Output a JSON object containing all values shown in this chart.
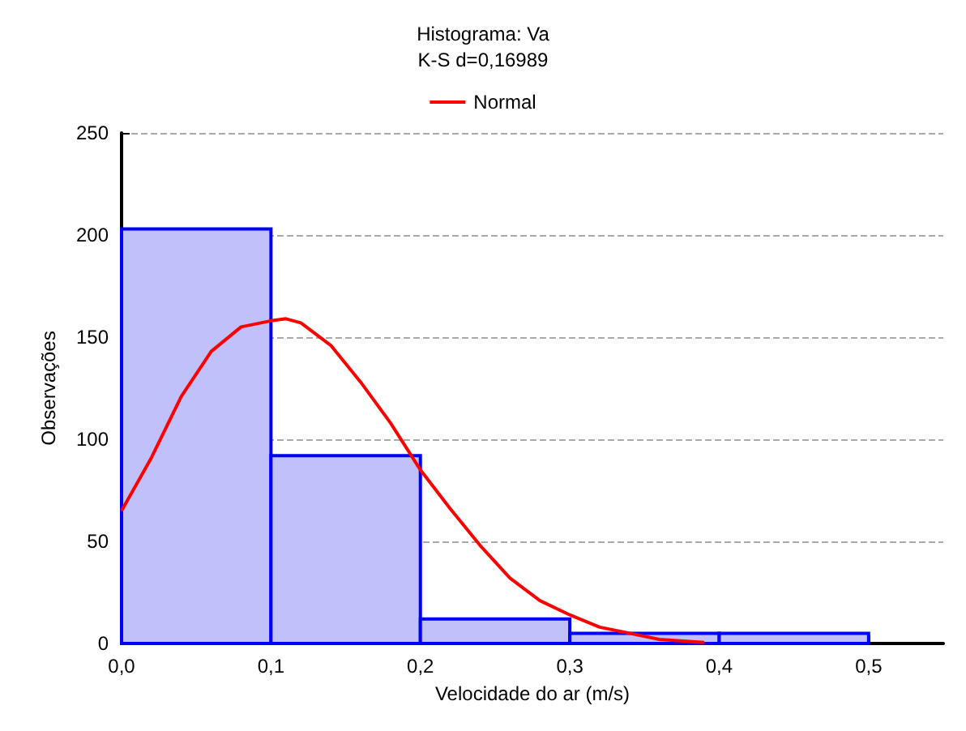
{
  "chart_data": {
    "type": "histogram",
    "title": "Histograma: Va",
    "subtitle": "K-S d=0,16989",
    "xlabel": "Velocidade do ar (m/s)",
    "ylabel": "Observações",
    "bins": [
      0,
      0.1,
      0.2,
      0.3,
      0.4,
      0.5
    ],
    "values": [
      203,
      92,
      12,
      5,
      5
    ],
    "color": "#0000ff",
    "series": [
      {
        "name": "Normal",
        "type": "line",
        "color": "#ff0000",
        "x": [
          0,
          0.02,
          0.04,
          0.06,
          0.08,
          0.1,
          0.11,
          0.12,
          0.14,
          0.16,
          0.18,
          0.2,
          0.22,
          0.24,
          0.26,
          0.28,
          0.3,
          0.32,
          0.34,
          0.36,
          0.39
        ],
        "values": [
          65,
          91,
          121,
          143,
          155,
          158,
          159,
          157,
          146,
          128,
          108,
          85,
          66,
          48,
          32,
          21,
          14,
          8,
          5,
          2,
          0.5
        ]
      }
    ],
    "xlim": [
      0,
      0.55
    ],
    "xticks": [
      {
        "value": 0,
        "label": "0,0"
      },
      {
        "value": 0.1,
        "label": "0,1"
      },
      {
        "value": 0.2,
        "label": "0,2"
      },
      {
        "value": 0.3,
        "label": "0,3"
      },
      {
        "value": 0.4,
        "label": "0,4"
      },
      {
        "value": 0.5,
        "label": "0,5"
      }
    ],
    "ylim": [
      0,
      250
    ],
    "yticks": [
      0,
      50,
      100,
      150,
      200,
      250
    ],
    "grid": "y",
    "legend": "top"
  }
}
